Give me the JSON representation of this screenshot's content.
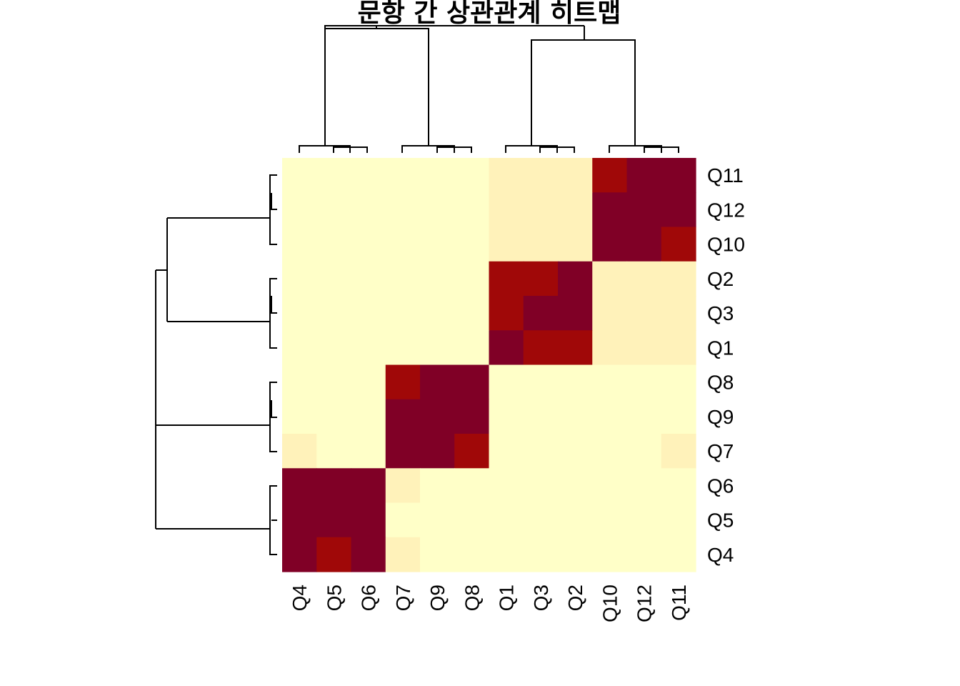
{
  "chart_data": {
    "type": "heatmap",
    "title": "문항 간 상관관계 히트맵",
    "columns": [
      "Q4",
      "Q5",
      "Q6",
      "Q7",
      "Q9",
      "Q8",
      "Q1",
      "Q3",
      "Q2",
      "Q10",
      "Q12",
      "Q11"
    ],
    "rows": [
      "Q11",
      "Q12",
      "Q10",
      "Q2",
      "Q3",
      "Q1",
      "Q8",
      "Q9",
      "Q7",
      "Q6",
      "Q5",
      "Q4"
    ],
    "values": [
      [
        0.05,
        0.05,
        0.05,
        0.05,
        0.05,
        0.05,
        0.2,
        0.2,
        0.2,
        0.85,
        1.0,
        1.0
      ],
      [
        0.05,
        0.05,
        0.05,
        0.05,
        0.05,
        0.05,
        0.2,
        0.2,
        0.2,
        1.0,
        1.0,
        1.0
      ],
      [
        0.05,
        0.05,
        0.05,
        0.05,
        0.05,
        0.05,
        0.2,
        0.2,
        0.2,
        1.0,
        1.0,
        0.85
      ],
      [
        0.05,
        0.05,
        0.05,
        0.05,
        0.05,
        0.05,
        0.85,
        0.85,
        1.0,
        0.2,
        0.2,
        0.2
      ],
      [
        0.05,
        0.05,
        0.05,
        0.05,
        0.05,
        0.05,
        0.85,
        1.0,
        1.0,
        0.2,
        0.2,
        0.2
      ],
      [
        0.05,
        0.05,
        0.05,
        0.05,
        0.05,
        0.05,
        1.0,
        0.85,
        0.85,
        0.2,
        0.2,
        0.2
      ],
      [
        0.05,
        0.05,
        0.05,
        0.85,
        1.0,
        1.0,
        0.05,
        0.05,
        0.05,
        0.05,
        0.05,
        0.05
      ],
      [
        0.05,
        0.05,
        0.05,
        1.0,
        1.0,
        1.0,
        0.05,
        0.05,
        0.05,
        0.05,
        0.05,
        0.05
      ],
      [
        0.2,
        0.05,
        0.05,
        1.0,
        1.0,
        0.85,
        0.05,
        0.05,
        0.05,
        0.05,
        0.05,
        0.2
      ],
      [
        1.0,
        1.0,
        1.0,
        0.2,
        0.05,
        0.05,
        0.05,
        0.05,
        0.05,
        0.05,
        0.05,
        0.05
      ],
      [
        1.0,
        1.0,
        1.0,
        0.05,
        0.05,
        0.05,
        0.05,
        0.05,
        0.05,
        0.05,
        0.05,
        0.05
      ],
      [
        1.0,
        0.85,
        1.0,
        0.2,
        0.05,
        0.05,
        0.05,
        0.05,
        0.05,
        0.05,
        0.05,
        0.05
      ]
    ],
    "color_scale": [
      "#FFFFC8",
      "#FFF2BA",
      "#A00808",
      "#800026"
    ],
    "dendrogram": "both"
  }
}
